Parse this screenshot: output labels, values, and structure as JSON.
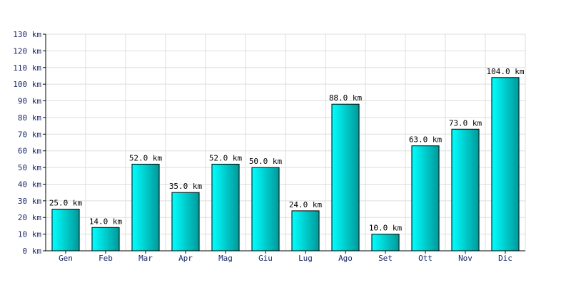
{
  "chart_data": {
    "type": "bar",
    "categories": [
      "Gen",
      "Feb",
      "Mar",
      "Apr",
      "Mag",
      "Giu",
      "Lug",
      "Ago",
      "Set",
      "Ott",
      "Nov",
      "Dic"
    ],
    "values": [
      25,
      14,
      52,
      35,
      52,
      50,
      24,
      88,
      10,
      63,
      73,
      104
    ],
    "data_labels": [
      "25.0 km",
      "14.0 km",
      "52.0 km",
      "35.0 km",
      "52.0 km",
      "50.0 km",
      "24.0 km",
      "88.0 km",
      "10.0 km",
      "63.0 km",
      "73.0 km",
      "104.0 km"
    ],
    "y_ticks": [
      "0 km",
      "10 km",
      "20 km",
      "30 km",
      "40 km",
      "50 km",
      "60 km",
      "70 km",
      "80 km",
      "90 km",
      "100 km",
      "110 km",
      "120 km",
      "130 km"
    ],
    "ylim": [
      0,
      130
    ],
    "title": "",
    "xlabel": "",
    "ylabel": "",
    "grid": true,
    "legend": "none",
    "colors": {
      "bar_light": "#00ffff",
      "bar_dark": "#009999",
      "grid": "#dddddd",
      "axis": "#000000",
      "tick_text": "#1a2a6c"
    }
  }
}
